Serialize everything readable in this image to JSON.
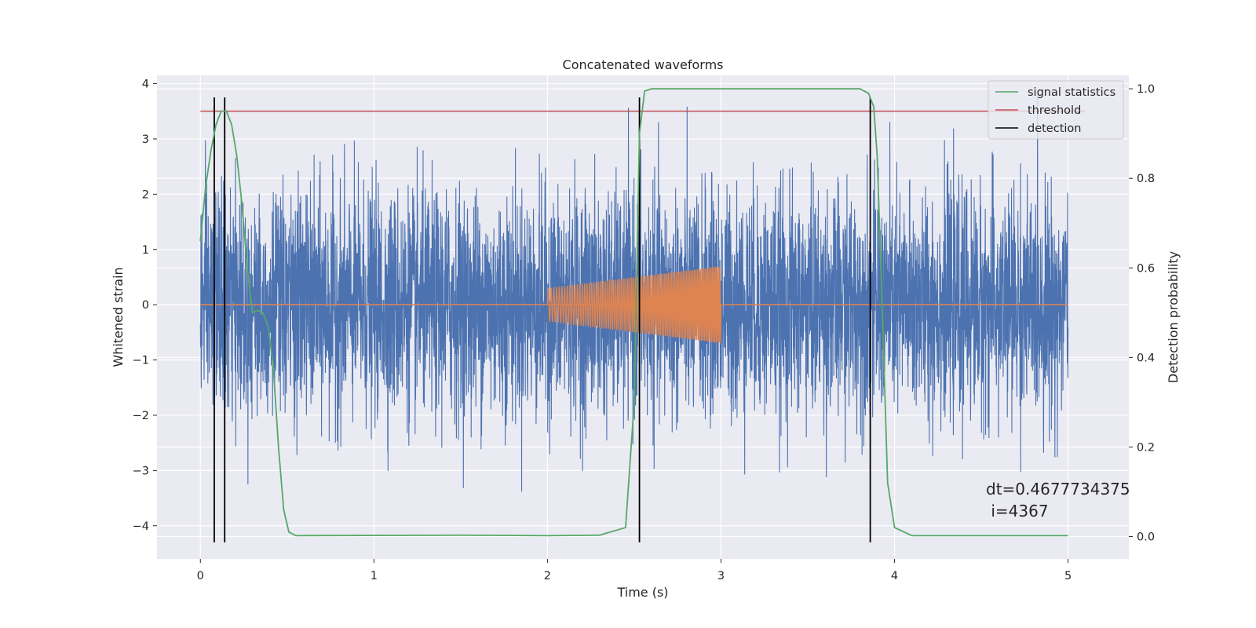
{
  "chart_data": {
    "type": "line",
    "title": "Concatenated waveforms",
    "xlabel": "Time (s)",
    "ylabel": "Whitened strain",
    "ylabel_right": "Detection probability",
    "xlim": [
      -0.25,
      5.35
    ],
    "ylim": [
      -4.6,
      4.15
    ],
    "ylim_right": [
      -0.05,
      1.03
    ],
    "xticks": [
      0,
      1,
      2,
      3,
      4,
      5
    ],
    "xtick_labels": [
      "0",
      "1",
      "2",
      "3",
      "4",
      "5"
    ],
    "yticks": [
      -4,
      -3,
      -2,
      -1,
      0,
      1,
      2,
      3,
      4
    ],
    "ytick_labels": [
      "−4",
      "−3",
      "−2",
      "−1",
      "0",
      "1",
      "2",
      "3",
      "4"
    ],
    "yticks_right": [
      0.0,
      0.2,
      0.4,
      0.6,
      0.8,
      1.0
    ],
    "ytick_labels_right": [
      "0.0",
      "0.2",
      "0.4",
      "0.6",
      "0.8",
      "1.0"
    ],
    "grid": true,
    "legend_position": "top-right",
    "series": [
      {
        "name": "",
        "kind": "noise",
        "color": "#4c72b0",
        "x_range": [
          0,
          5
        ],
        "typical_amplitude": 1.0
      },
      {
        "name": "",
        "kind": "chirp",
        "color": "#dd8452",
        "x_range": [
          2,
          3
        ],
        "amplitude_start": 0.3,
        "amplitude_end": 0.7,
        "baseline": 0
      },
      {
        "name": "signal statistics",
        "kind": "curve",
        "color": "#55a868",
        "axis": "right",
        "x": [
          0.0,
          0.03,
          0.06,
          0.09,
          0.12,
          0.15,
          0.18,
          0.21,
          0.24,
          0.27,
          0.3,
          0.33,
          0.36,
          0.39,
          0.42,
          0.45,
          0.48,
          0.51,
          0.55,
          1.5,
          2.0,
          2.3,
          2.45,
          2.5,
          2.53,
          2.56,
          2.6,
          3.8,
          3.85,
          3.88,
          3.9,
          3.93,
          3.96,
          4.0,
          4.1,
          5.0
        ],
        "y": [
          0.66,
          0.78,
          0.86,
          0.92,
          0.95,
          0.95,
          0.92,
          0.85,
          0.74,
          0.6,
          0.5,
          0.505,
          0.5,
          0.47,
          0.38,
          0.2,
          0.06,
          0.01,
          0.002,
          0.003,
          0.002,
          0.003,
          0.02,
          0.3,
          0.9,
          0.995,
          1.0,
          1.0,
          0.99,
          0.96,
          0.85,
          0.5,
          0.12,
          0.02,
          0.002,
          0.002
        ]
      },
      {
        "name": "threshold",
        "kind": "hline",
        "color": "#c44e52",
        "axis": "right",
        "y": 0.95,
        "x_range": [
          0,
          5.1
        ]
      },
      {
        "name": "detection",
        "kind": "vlines",
        "color": "#000000",
        "x": [
          0.08,
          0.14,
          2.53,
          3.86
        ],
        "y_range": [
          -4.3,
          3.75
        ]
      }
    ],
    "annotation": {
      "line1": "dt=0.4677734375",
      "line2": " i=4367"
    }
  }
}
